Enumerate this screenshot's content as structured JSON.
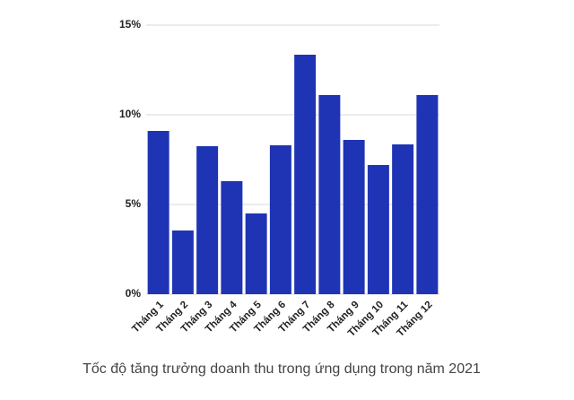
{
  "chart_data": {
    "type": "bar",
    "caption": "Tốc độ tăng trưởng doanh thu trong ứng dụng trong năm 2021",
    "categories": [
      "Tháng 1",
      "Tháng 2",
      "Tháng 3",
      "Tháng 4",
      "Tháng 5",
      "Tháng 6",
      "Tháng 7",
      "Tháng 8",
      "Tháng 9",
      "Tháng 10",
      "Tháng 11",
      "Tháng 12"
    ],
    "values": [
      9.1,
      3.55,
      8.25,
      6.3,
      4.5,
      8.3,
      13.35,
      11.1,
      8.6,
      7.2,
      8.35,
      11.1
    ],
    "color": "#1f34b4",
    "ylim": [
      0,
      15
    ],
    "yticks": [
      {
        "value": 0,
        "label": "0%"
      },
      {
        "value": 5,
        "label": "5%"
      },
      {
        "value": 10,
        "label": "10%"
      },
      {
        "value": 15,
        "label": "15%"
      }
    ],
    "grid": true
  }
}
